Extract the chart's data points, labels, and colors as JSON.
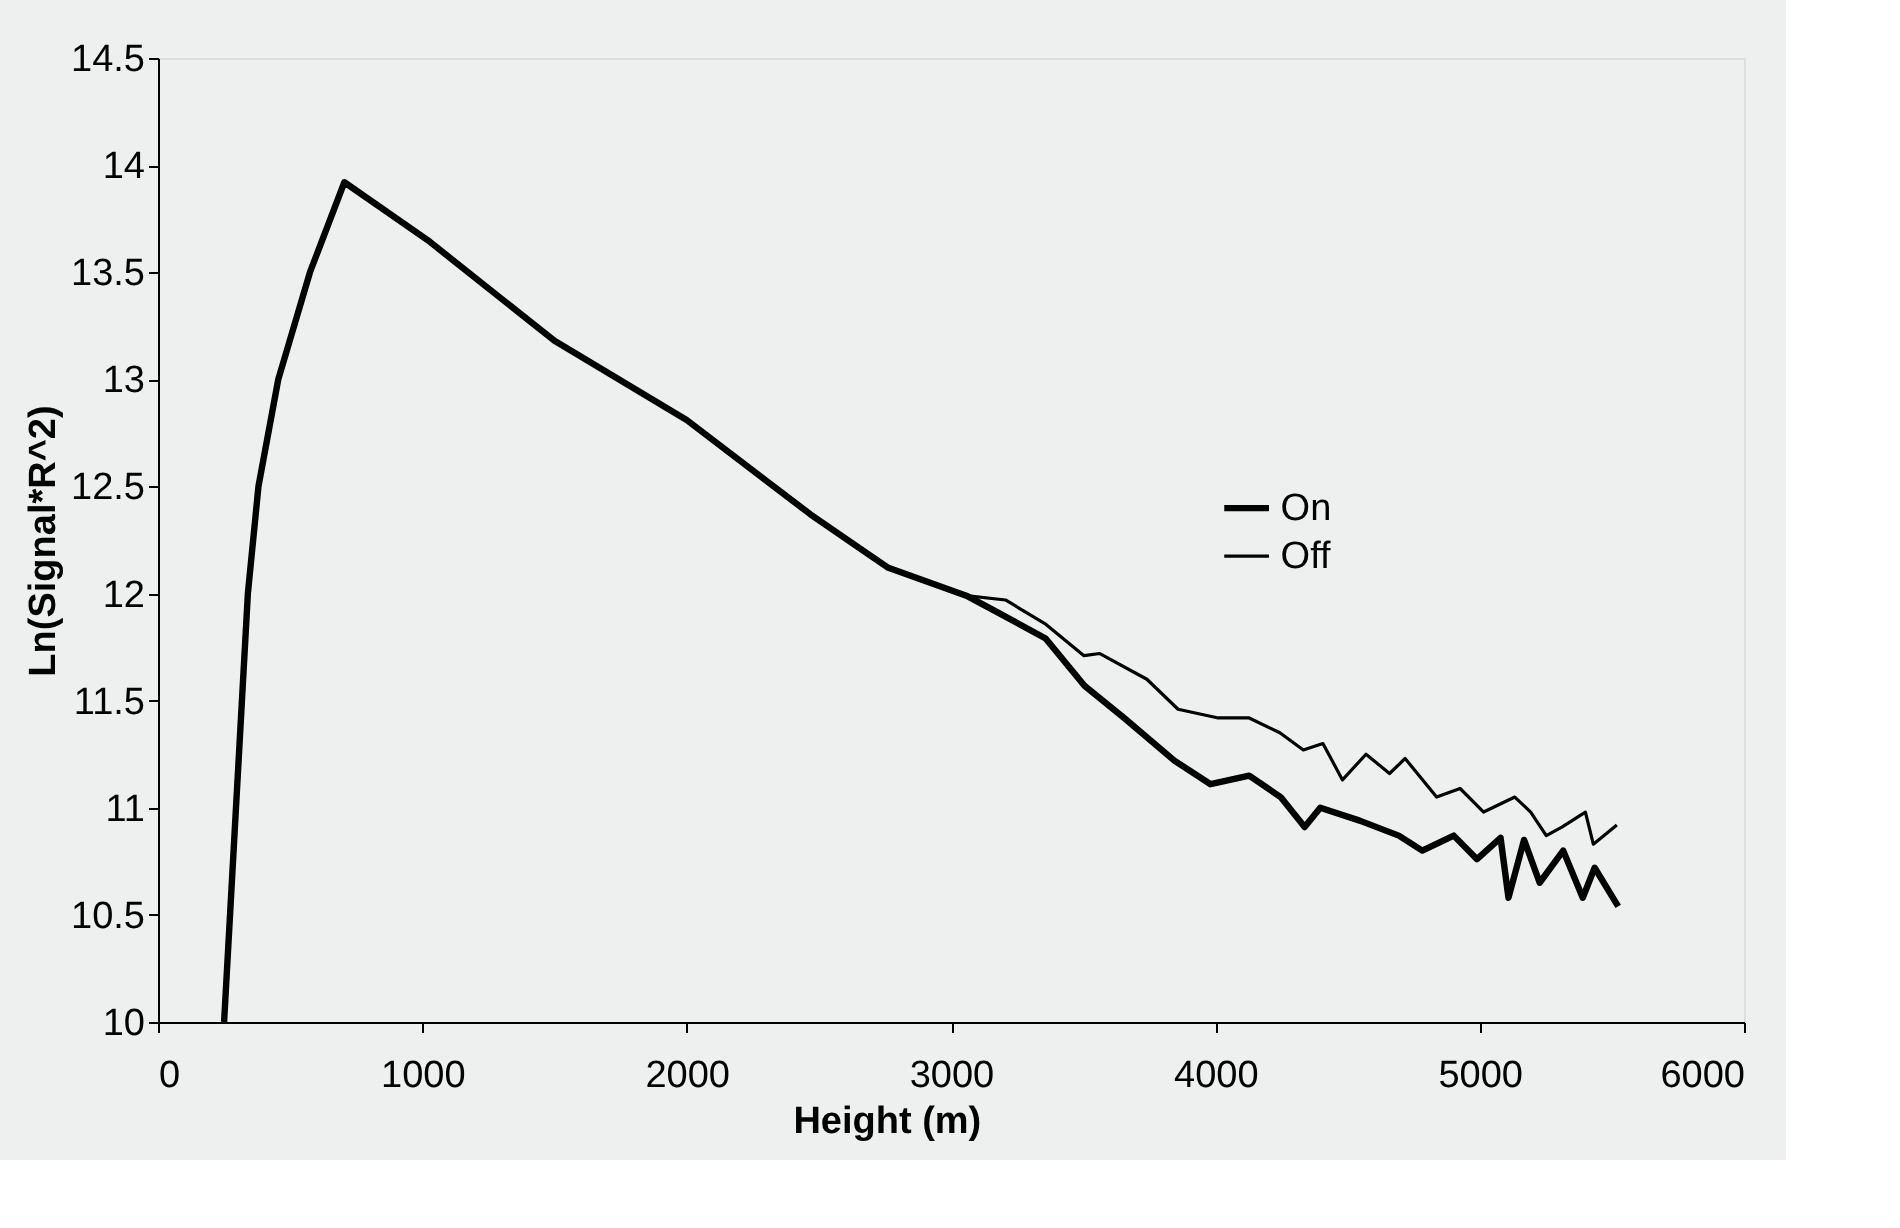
{
  "chart_data": {
    "type": "line",
    "xlabel": "Height (m)",
    "ylabel": "Ln(Signal*R^2)",
    "xlim": [
      0,
      6000
    ],
    "ylim": [
      10,
      14.5
    ],
    "xticks": [
      0,
      1000,
      2000,
      3000,
      4000,
      5000,
      6000
    ],
    "yticks": [
      10,
      10.5,
      11,
      11.5,
      12,
      12.5,
      13,
      13.5,
      14,
      14.5
    ],
    "grid": false,
    "legend": "right",
    "marker": "none",
    "line_style": "solid",
    "series": [
      {
        "name": "On",
        "color": "#000000",
        "x": [
          250,
          295,
          340,
          380,
          455,
          575,
          705,
          1020,
          1500,
          2000,
          2468,
          2680,
          2763,
          3058,
          3150,
          3358,
          3505,
          3654,
          3845,
          3982,
          4128,
          4247,
          4338,
          4397,
          4546,
          4694,
          4783,
          4902,
          4990,
          5079,
          5109,
          5168,
          5227,
          5316,
          5390,
          5435,
          5524
        ],
        "values": [
          10,
          11,
          12,
          12.5,
          13,
          13.5,
          13.92,
          13.65,
          13.18,
          12.81,
          12.37,
          12.19,
          12.12,
          11.99,
          11.93,
          11.79,
          11.57,
          11.42,
          11.22,
          11.11,
          11.15,
          11.05,
          10.91,
          11.0,
          10.94,
          10.87,
          10.8,
          10.87,
          10.76,
          10.86,
          10.58,
          10.85,
          10.65,
          10.8,
          10.58,
          10.72,
          10.54
        ]
      },
      {
        "name": "Off",
        "color": "#000000",
        "x": [
          250,
          295,
          340,
          380,
          455,
          575,
          705,
          1020,
          1500,
          2000,
          2468,
          2680,
          2763,
          3058,
          3206,
          3355,
          3503,
          3563,
          3741,
          3859,
          4007,
          4126,
          4244,
          4333,
          4407,
          4481,
          4570,
          4659,
          4718,
          4837,
          4926,
          5015,
          5133,
          5193,
          5252,
          5311,
          5400,
          5430,
          5519
        ],
        "values": [
          10,
          11,
          12,
          12.5,
          13,
          13.5,
          13.92,
          13.65,
          13.18,
          12.81,
          12.37,
          12.19,
          12.12,
          11.99,
          11.97,
          11.86,
          11.71,
          11.72,
          11.6,
          11.46,
          11.42,
          11.42,
          11.35,
          11.27,
          11.3,
          11.13,
          11.25,
          11.16,
          11.23,
          11.05,
          11.09,
          10.98,
          11.05,
          10.98,
          10.87,
          10.91,
          10.98,
          10.83,
          10.92
        ]
      }
    ]
  }
}
